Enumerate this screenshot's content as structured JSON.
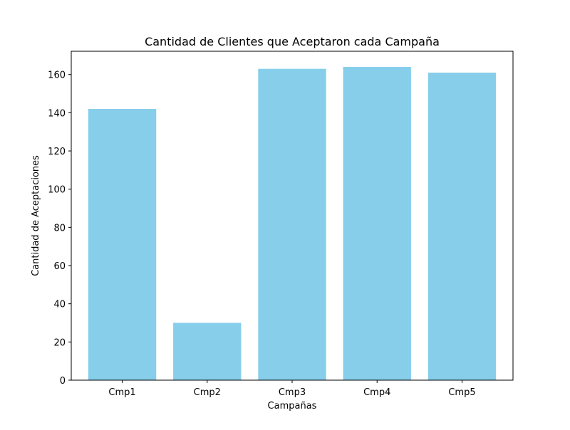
{
  "chart_data": {
    "type": "bar",
    "title": "Cantidad de Clientes que Aceptaron cada Campaña",
    "xlabel": "Campañas",
    "ylabel": "Cantidad de Aceptaciones",
    "categories": [
      "Cmp1",
      "Cmp2",
      "Cmp3",
      "Cmp4",
      "Cmp5"
    ],
    "values": [
      142,
      30,
      163,
      164,
      161
    ],
    "ylim": [
      0,
      172.2
    ],
    "yticks": [
      0,
      20,
      40,
      60,
      80,
      100,
      120,
      140,
      160
    ],
    "grid": false,
    "bar_color": "#87ceeb"
  }
}
